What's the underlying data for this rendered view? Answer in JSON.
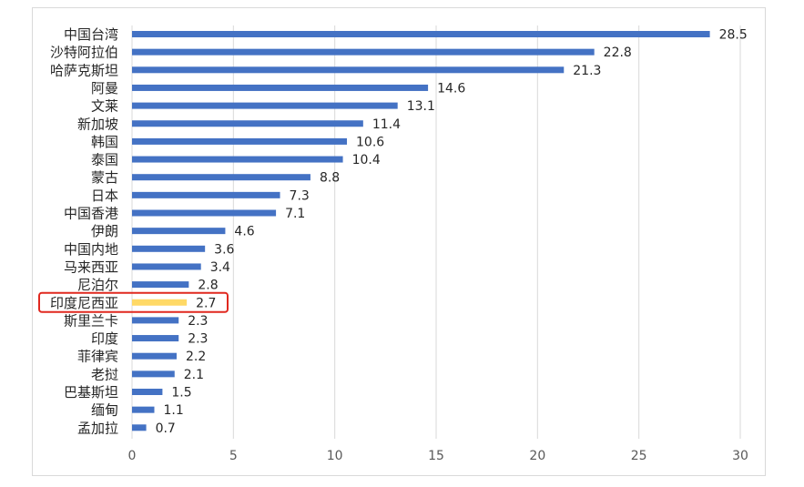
{
  "chart_data": {
    "type": "bar",
    "orientation": "horizontal",
    "title": "",
    "xlabel": "",
    "ylabel": "",
    "xlim": [
      0,
      30
    ],
    "xticks": [
      0,
      5,
      10,
      15,
      20,
      25,
      30
    ],
    "grid": "vertical",
    "legend": "none",
    "categories": [
      "中国台湾",
      "沙特阿拉伯",
      "哈萨克斯坦",
      "阿曼",
      "文莱",
      "新加坡",
      "韩国",
      "泰国",
      "蒙古",
      "日本",
      "中国香港",
      "伊朗",
      "中国内地",
      "马来西亚",
      "尼泊尔",
      "印度尼西亚",
      "斯里兰卡",
      "印度",
      "菲律宾",
      "老挝",
      "巴基斯坦",
      "缅甸",
      "孟加拉"
    ],
    "values": [
      28.5,
      22.8,
      21.3,
      14.6,
      13.1,
      11.4,
      10.6,
      10.4,
      8.8,
      7.3,
      7.1,
      4.6,
      3.6,
      3.4,
      2.8,
      2.7,
      2.3,
      2.3,
      2.2,
      2.1,
      1.5,
      1.1,
      0.7
    ],
    "value_labels": [
      "28.5",
      "22.8",
      "21.3",
      "14.6",
      "13.1",
      "11.4",
      "10.6",
      "10.4",
      "8.8",
      "7.3",
      "7.1",
      "4.6",
      "3.6",
      "3.4",
      "2.8",
      "2.7",
      "2.3",
      "2.3",
      "2.2",
      "2.1",
      "1.5",
      "1.1",
      "0.7"
    ],
    "highlight_category": "印度尼西亚",
    "colors": {
      "bar": "#4472c4",
      "highlight_bar": "#ffd966",
      "highlight_box": "#e0281f",
      "grid": "#d9d9d9"
    }
  }
}
